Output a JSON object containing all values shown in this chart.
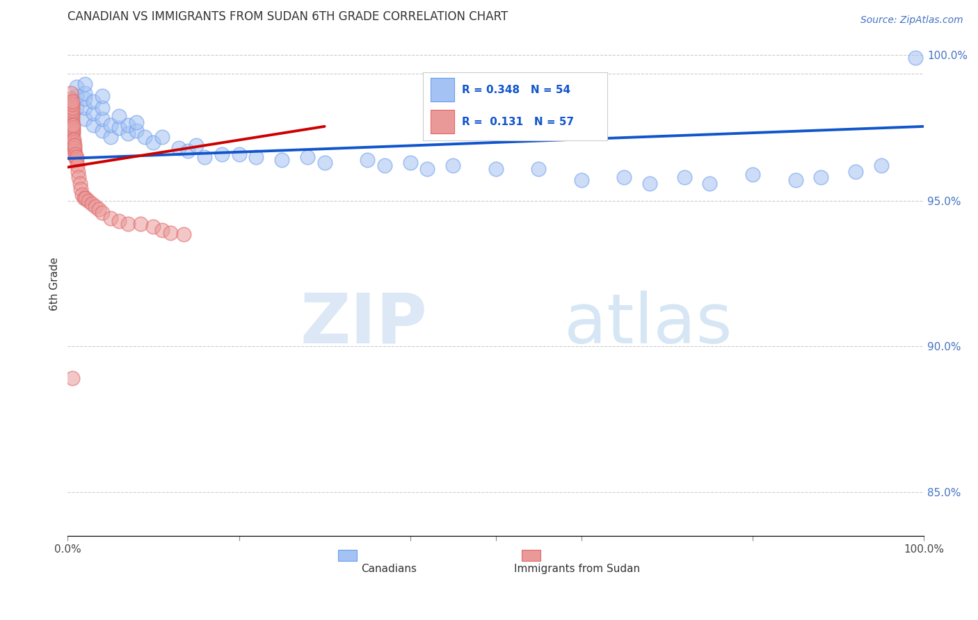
{
  "title": "CANADIAN VS IMMIGRANTS FROM SUDAN 6TH GRADE CORRELATION CHART",
  "source": "Source: ZipAtlas.com",
  "ylabel": "6th Grade",
  "xlim": [
    0.0,
    1.0
  ],
  "ylim": [
    0.835,
    1.008
  ],
  "y_ticks_right": [
    0.85,
    0.9,
    0.95,
    1.0
  ],
  "y_tick_labels_right": [
    "85.0%",
    "90.0%",
    "95.0%",
    "100.0%"
  ],
  "canadian_R": 0.348,
  "canadian_N": 54,
  "sudan_R": 0.131,
  "sudan_N": 57,
  "blue_color": "#a4c2f4",
  "pink_color": "#ea9999",
  "blue_edge_color": "#6d9eeb",
  "pink_edge_color": "#e06666",
  "blue_line_color": "#1155cc",
  "pink_line_color": "#cc0000",
  "pink_dash_color": "#ea9999",
  "background_color": "#ffffff",
  "watermark_color": "#d0e4f5",
  "grid_color": "#b7b7b7",
  "title_fontsize": 12,
  "source_fontsize": 10,
  "dashed_line_y": 0.9935,
  "blue_trend_x0": 0.0,
  "blue_trend_y0": 0.9645,
  "blue_trend_x1": 1.0,
  "blue_trend_y1": 0.9755,
  "pink_trend_x0": 0.0,
  "pink_trend_y0": 0.9615,
  "pink_trend_x1": 0.3,
  "pink_trend_y1": 0.9755,
  "canadian_x": [
    0.01,
    0.01,
    0.01,
    0.02,
    0.02,
    0.02,
    0.02,
    0.02,
    0.03,
    0.03,
    0.03,
    0.04,
    0.04,
    0.04,
    0.04,
    0.05,
    0.05,
    0.06,
    0.06,
    0.07,
    0.07,
    0.08,
    0.08,
    0.09,
    0.1,
    0.11,
    0.13,
    0.14,
    0.15,
    0.16,
    0.18,
    0.2,
    0.22,
    0.25,
    0.28,
    0.3,
    0.35,
    0.37,
    0.4,
    0.42,
    0.45,
    0.5,
    0.55,
    0.6,
    0.65,
    0.68,
    0.72,
    0.75,
    0.8,
    0.85,
    0.88,
    0.92,
    0.95,
    0.99
  ],
  "canadian_y": [
    0.982,
    0.986,
    0.989,
    0.978,
    0.982,
    0.985,
    0.987,
    0.99,
    0.976,
    0.98,
    0.984,
    0.974,
    0.978,
    0.982,
    0.986,
    0.972,
    0.976,
    0.975,
    0.979,
    0.973,
    0.976,
    0.974,
    0.977,
    0.972,
    0.97,
    0.972,
    0.968,
    0.967,
    0.969,
    0.965,
    0.966,
    0.966,
    0.965,
    0.964,
    0.965,
    0.963,
    0.964,
    0.962,
    0.963,
    0.961,
    0.962,
    0.961,
    0.961,
    0.957,
    0.958,
    0.956,
    0.958,
    0.956,
    0.959,
    0.957,
    0.958,
    0.96,
    0.962,
    0.999
  ],
  "sudan_x": [
    0.004,
    0.004,
    0.004,
    0.004,
    0.004,
    0.004,
    0.004,
    0.004,
    0.004,
    0.005,
    0.005,
    0.005,
    0.005,
    0.005,
    0.005,
    0.005,
    0.005,
    0.005,
    0.005,
    0.005,
    0.006,
    0.006,
    0.006,
    0.006,
    0.006,
    0.007,
    0.007,
    0.007,
    0.008,
    0.008,
    0.008,
    0.009,
    0.009,
    0.01,
    0.01,
    0.011,
    0.012,
    0.013,
    0.014,
    0.015,
    0.017,
    0.019,
    0.021,
    0.024,
    0.028,
    0.032,
    0.036,
    0.04,
    0.05,
    0.06,
    0.07,
    0.085,
    0.1,
    0.11,
    0.12,
    0.135,
    0.005
  ],
  "sudan_y": [
    0.975,
    0.977,
    0.979,
    0.981,
    0.982,
    0.983,
    0.984,
    0.985,
    0.987,
    0.973,
    0.975,
    0.976,
    0.977,
    0.978,
    0.979,
    0.98,
    0.981,
    0.982,
    0.983,
    0.984,
    0.971,
    0.973,
    0.974,
    0.975,
    0.976,
    0.969,
    0.97,
    0.971,
    0.967,
    0.968,
    0.969,
    0.965,
    0.966,
    0.964,
    0.965,
    0.962,
    0.96,
    0.958,
    0.956,
    0.954,
    0.952,
    0.951,
    0.951,
    0.95,
    0.949,
    0.948,
    0.947,
    0.946,
    0.944,
    0.943,
    0.942,
    0.942,
    0.941,
    0.94,
    0.939,
    0.9385,
    0.889
  ]
}
